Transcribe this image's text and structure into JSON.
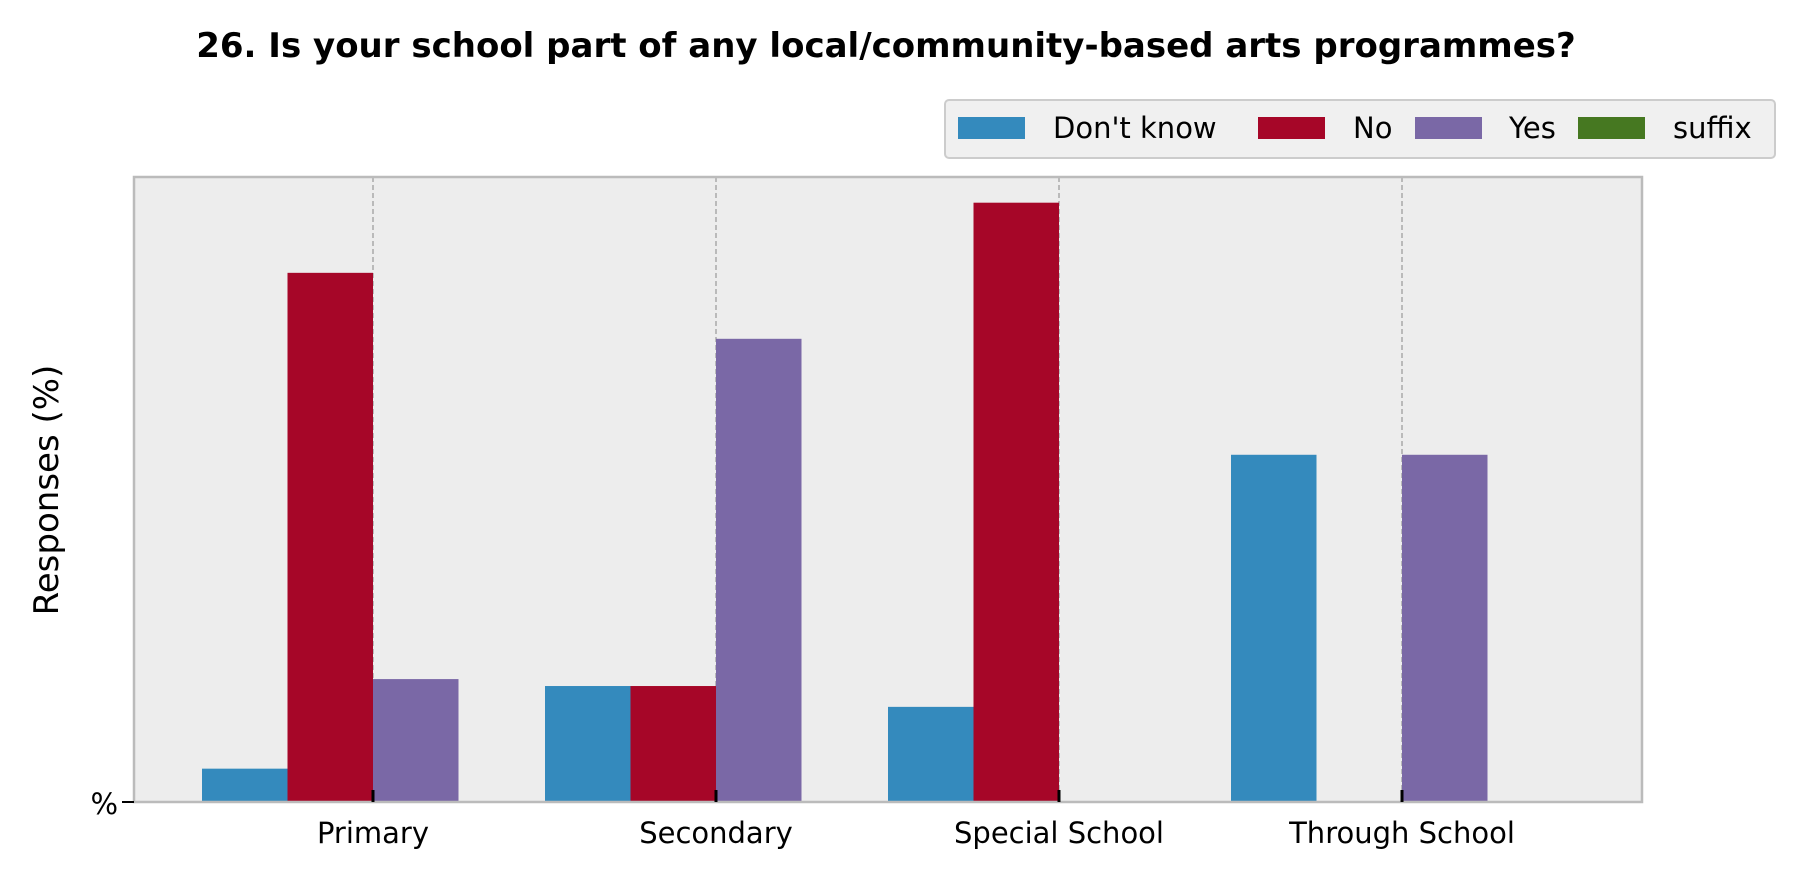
{
  "chart_data": {
    "type": "bar",
    "title": "26. Is your school part of any local/community-based arts programmes?",
    "xlabel": "",
    "ylabel": "Responses (%)",
    "ytick_labels": [
      "%"
    ],
    "ylim": [
      0,
      90
    ],
    "categories": [
      "Primary",
      "Secondary",
      "Special School",
      "Through School"
    ],
    "series": [
      {
        "name": "Don't know",
        "color": "#348ABD",
        "values": [
          4.8,
          16.7,
          13.7,
          50.0
        ]
      },
      {
        "name": "No",
        "color": "#A60628",
        "values": [
          76.2,
          16.7,
          86.3,
          0
        ]
      },
      {
        "name": "Yes",
        "color": "#7A68A6",
        "values": [
          17.7,
          66.7,
          0,
          50.0
        ]
      },
      {
        "name": "suffix",
        "color": "#467821",
        "values": [
          0,
          0,
          0,
          0
        ]
      }
    ],
    "grid": "vertical-dashed",
    "legend_position": "top-right",
    "plot_background": "#EDEDED",
    "frame_color": "#BBBBBB",
    "grid_color": "#AAAAAA"
  }
}
